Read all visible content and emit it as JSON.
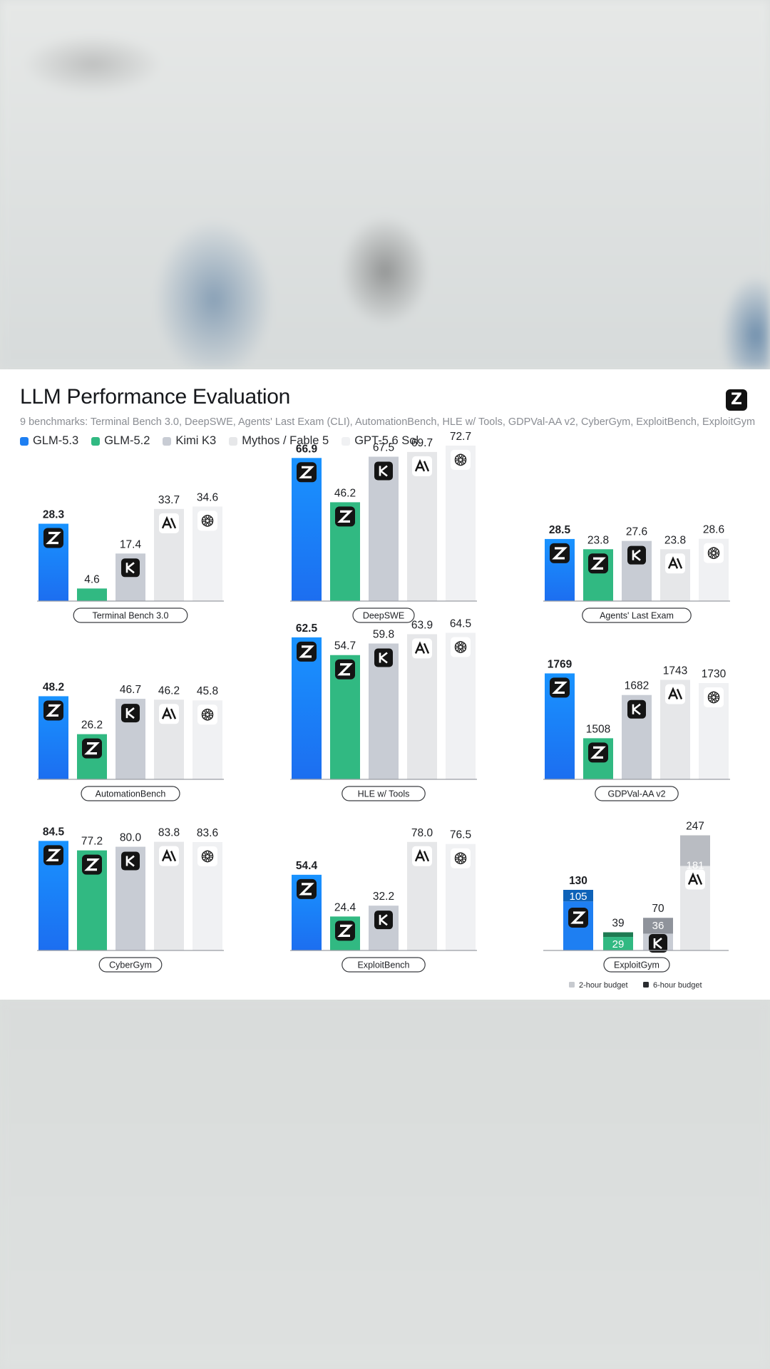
{
  "header": {
    "title": "LLM Performance Evaluation",
    "subtitle": "9 benchmarks: Terminal Bench 3.0, DeepSWE, Agents' Last Exam (CLI), AutomationBench, HLE w/ Tools, GDPVal-AA v2, CyberGym, ExploitBench, ExploitGym",
    "logo": "Z"
  },
  "legend": [
    {
      "name": "GLM-5.3",
      "color": "#1e7ff2"
    },
    {
      "name": "GLM-5.2",
      "color": "#31b982"
    },
    {
      "name": "Kimi K3",
      "color": "#c8ccd4"
    },
    {
      "name": "Mythos / Fable 5",
      "color": "#e6e7e9"
    },
    {
      "name": "GPT-5.6 Sol",
      "color": "#f0f1f3"
    }
  ],
  "icons": {
    "glm": "z-logo-icon",
    "kimi": "k-logo-icon",
    "mythos": "anthropic-logo-icon",
    "gpt": "openai-logo-icon"
  },
  "chart_data": [
    {
      "type": "bar",
      "title": "Terminal Bench 3.0",
      "categories": [
        "GLM-5.3",
        "GLM-5.2",
        "Kimi K3",
        "Mythos / Fable 5",
        "GPT-5.6 Sol"
      ],
      "values": [
        28.3,
        4.6,
        17.4,
        33.7,
        34.6
      ],
      "value_labels": [
        "28.3",
        "4.6",
        "17.4",
        "33.7",
        "34.6"
      ]
    },
    {
      "type": "bar",
      "title": "DeepSWE",
      "categories": [
        "GLM-5.3",
        "GLM-5.2",
        "Kimi K3",
        "Mythos / Fable 5",
        "GPT-5.6 Sol"
      ],
      "values": [
        66.9,
        46.2,
        67.5,
        69.7,
        72.7
      ],
      "value_labels": [
        "66.9",
        "46.2",
        "67.5",
        "69.7",
        "72.7"
      ]
    },
    {
      "type": "bar",
      "title": "Agents' Last Exam",
      "categories": [
        "GLM-5.3",
        "GLM-5.2",
        "Kimi K3",
        "Mythos / Fable 5",
        "GPT-5.6 Sol"
      ],
      "values": [
        28.5,
        23.8,
        27.6,
        23.8,
        28.6
      ],
      "value_labels": [
        "28.5",
        "23.8",
        "27.6",
        "23.8",
        "28.6"
      ]
    },
    {
      "type": "bar",
      "title": "AutomationBench",
      "categories": [
        "GLM-5.3",
        "GLM-5.2",
        "Kimi K3",
        "Mythos / Fable 5",
        "GPT-5.6 Sol"
      ],
      "values": [
        48.2,
        26.2,
        46.7,
        46.2,
        45.8
      ],
      "value_labels": [
        "48.2",
        "26.2",
        "46.7",
        "46.2",
        "45.8"
      ]
    },
    {
      "type": "bar",
      "title": "HLE w/ Tools",
      "categories": [
        "GLM-5.3",
        "GLM-5.2",
        "Kimi K3",
        "Mythos / Fable 5",
        "GPT-5.6 Sol"
      ],
      "values": [
        62.5,
        54.7,
        59.8,
        63.9,
        64.5
      ],
      "value_labels": [
        "62.5",
        "54.7",
        "59.8",
        "63.9",
        "64.5"
      ]
    },
    {
      "type": "bar",
      "title": "GDPVal-AA v2",
      "categories": [
        "GLM-5.3",
        "GLM-5.2",
        "Kimi K3",
        "Mythos / Fable 5",
        "GPT-5.6 Sol"
      ],
      "values": [
        1769,
        1508,
        1682,
        1743,
        1730
      ],
      "value_labels": [
        "1769",
        "1508",
        "1682",
        "1743",
        "1730"
      ]
    },
    {
      "type": "bar",
      "title": "CyberGym",
      "categories": [
        "GLM-5.3",
        "GLM-5.2",
        "Kimi K3",
        "Mythos / Fable 5",
        "GPT-5.6 Sol"
      ],
      "values": [
        84.5,
        77.2,
        80.0,
        83.8,
        83.6
      ],
      "value_labels": [
        "84.5",
        "77.2",
        "80.0",
        "83.8",
        "83.6"
      ]
    },
    {
      "type": "bar",
      "title": "ExploitBench",
      "categories": [
        "GLM-5.3",
        "GLM-5.2",
        "Kimi K3",
        "Mythos / Fable 5",
        "GPT-5.6 Sol"
      ],
      "values": [
        54.4,
        24.4,
        32.2,
        78.0,
        76.5
      ],
      "value_labels": [
        "54.4",
        "24.4",
        "32.2",
        "78.0",
        "76.5"
      ]
    },
    {
      "type": "stacked-bar",
      "title": "ExploitGym",
      "categories": [
        "GLM-5.3",
        "GLM-5.2",
        "Kimi K3",
        "Mythos / Fable 5"
      ],
      "values_2h": [
        105,
        29,
        36,
        181
      ],
      "values_total": [
        130,
        39,
        70,
        247
      ],
      "value_labels_2h": [
        "105",
        "29",
        "36",
        "181"
      ],
      "value_labels_total": [
        "130",
        "39",
        "70",
        "247"
      ],
      "legend": [
        "2-hour budget",
        "6-hour budget"
      ]
    }
  ]
}
